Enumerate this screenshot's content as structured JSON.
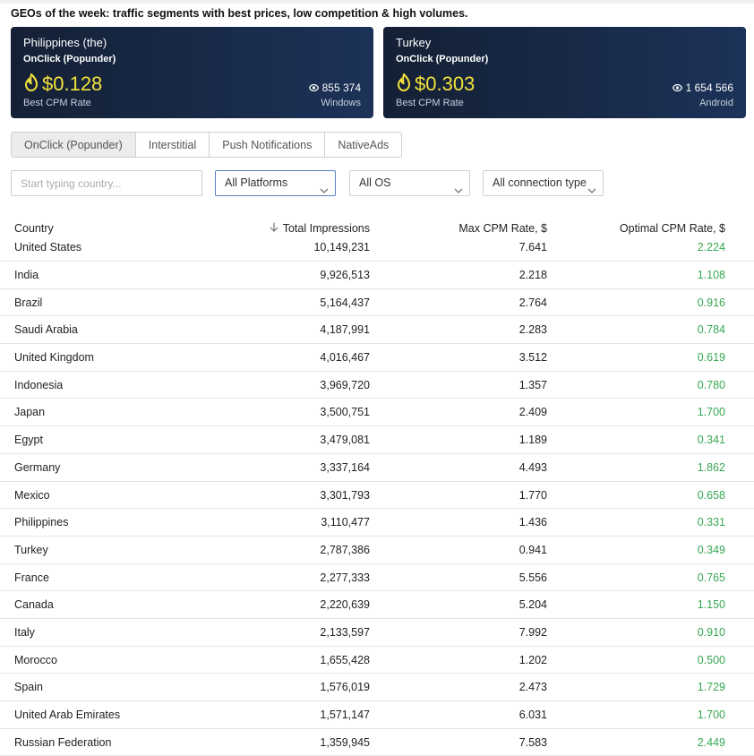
{
  "headline": "GEOs of the week: traffic segments with best prices, low competition & high volumes.",
  "cards": [
    {
      "country": "Philippines (the)",
      "type": "OnClick (Popunder)",
      "price": "$0.128",
      "price_label": "Best CPM Rate",
      "views": "855 374",
      "platform": "Windows"
    },
    {
      "country": "Turkey",
      "type": "OnClick (Popunder)",
      "price": "$0.303",
      "price_label": "Best CPM Rate",
      "views": "1 654 566",
      "platform": "Android"
    }
  ],
  "tabs": [
    "OnClick (Popunder)",
    "Interstitial",
    "Push Notifications",
    "NativeAds"
  ],
  "active_tab": "OnClick (Popunder)",
  "filters": {
    "search_placeholder": "Start typing country...",
    "platform": "All Platforms",
    "os": "All OS",
    "connection": "All connection type"
  },
  "table": {
    "headers": {
      "country": "Country",
      "impressions": "Total Impressions",
      "max_cpm": "Max CPM Rate, $",
      "optimal_cpm": "Optimal CPM Rate, $"
    },
    "rows": [
      {
        "country": "United States",
        "impressions": "10,149,231",
        "max_cpm": "7.641",
        "optimal_cpm": "2.224"
      },
      {
        "country": "India",
        "impressions": "9,926,513",
        "max_cpm": "2.218",
        "optimal_cpm": "1.108"
      },
      {
        "country": "Brazil",
        "impressions": "5,164,437",
        "max_cpm": "2.764",
        "optimal_cpm": "0.916"
      },
      {
        "country": "Saudi Arabia",
        "impressions": "4,187,991",
        "max_cpm": "2.283",
        "optimal_cpm": "0.784"
      },
      {
        "country": "United Kingdom",
        "impressions": "4,016,467",
        "max_cpm": "3.512",
        "optimal_cpm": "0.619"
      },
      {
        "country": "Indonesia",
        "impressions": "3,969,720",
        "max_cpm": "1.357",
        "optimal_cpm": "0.780"
      },
      {
        "country": "Japan",
        "impressions": "3,500,751",
        "max_cpm": "2.409",
        "optimal_cpm": "1.700"
      },
      {
        "country": "Egypt",
        "impressions": "3,479,081",
        "max_cpm": "1.189",
        "optimal_cpm": "0.341"
      },
      {
        "country": "Germany",
        "impressions": "3,337,164",
        "max_cpm": "4.493",
        "optimal_cpm": "1.862"
      },
      {
        "country": "Mexico",
        "impressions": "3,301,793",
        "max_cpm": "1.770",
        "optimal_cpm": "0.658"
      },
      {
        "country": "Philippines",
        "impressions": "3,110,477",
        "max_cpm": "1.436",
        "optimal_cpm": "0.331"
      },
      {
        "country": "Turkey",
        "impressions": "2,787,386",
        "max_cpm": "0.941",
        "optimal_cpm": "0.349"
      },
      {
        "country": "France",
        "impressions": "2,277,333",
        "max_cpm": "5.556",
        "optimal_cpm": "0.765"
      },
      {
        "country": "Canada",
        "impressions": "2,220,639",
        "max_cpm": "5.204",
        "optimal_cpm": "1.150"
      },
      {
        "country": "Italy",
        "impressions": "2,133,597",
        "max_cpm": "7.992",
        "optimal_cpm": "0.910"
      },
      {
        "country": "Morocco",
        "impressions": "1,655,428",
        "max_cpm": "1.202",
        "optimal_cpm": "0.500"
      },
      {
        "country": "Spain",
        "impressions": "1,576,019",
        "max_cpm": "2.473",
        "optimal_cpm": "1.729"
      },
      {
        "country": "United Arab Emirates",
        "impressions": "1,571,147",
        "max_cpm": "6.031",
        "optimal_cpm": "1.700"
      },
      {
        "country": "Russian Federation",
        "impressions": "1,359,945",
        "max_cpm": "7.583",
        "optimal_cpm": "2.449"
      }
    ]
  },
  "icons": {
    "price": "fire-icon",
    "views": "eye-icon",
    "sort": "arrow-down-icon",
    "select": "chevron-down-icon"
  },
  "colors": {
    "card_bg": "#172847",
    "price": "#f3e23b",
    "optimal": "#36a852",
    "active_select_border": "#5d7fc0"
  }
}
